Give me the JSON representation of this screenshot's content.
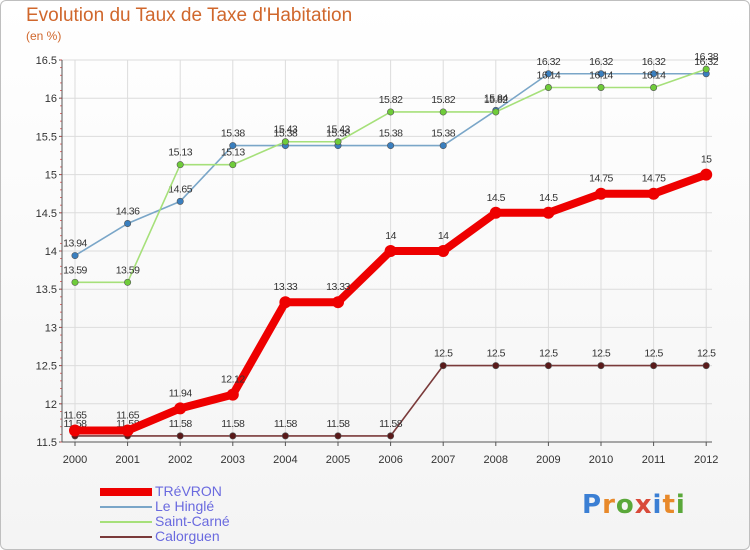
{
  "title": "Evolution du Taux de Taxe d'Habitation",
  "unit_label": "(en %)",
  "logo": {
    "text": "Proxiti",
    "colors": [
      "#3b7fd4",
      "#e8892a",
      "#5aa83a",
      "#d94a3a",
      "#3b7fd4",
      "#e8892a",
      "#5aa83a"
    ]
  },
  "chart_data": {
    "type": "line",
    "title": "Evolution du Taux de Taxe d'Habitation",
    "ylabel": "(en %)",
    "xlabel": "",
    "ylim": [
      11.5,
      16.5
    ],
    "yticks": [
      11.5,
      12,
      12.5,
      13,
      13.5,
      14,
      14.5,
      15,
      15.5,
      16,
      16.5
    ],
    "ytick_labels": [
      "11.5",
      "12",
      "12.5",
      "13",
      "13.5",
      "14",
      "14.5",
      "15",
      "15.5",
      "16",
      "16.5"
    ],
    "categories": [
      "2000",
      "2001",
      "2002",
      "2003",
      "2004",
      "2005",
      "2006",
      "2007",
      "2008",
      "2009",
      "2010",
      "2011",
      "2012"
    ],
    "grid": true,
    "legend_position": "bottom-left",
    "series": [
      {
        "name": "Le Hinglé",
        "color": "#7aa6c8",
        "marker": "#3a7fbf",
        "values": [
          13.94,
          14.36,
          14.65,
          15.38,
          15.38,
          15.38,
          15.38,
          15.38,
          15.84,
          16.32,
          16.32,
          16.32,
          16.32
        ],
        "labels": [
          "13.94",
          "14.36",
          "14.65",
          "15.38",
          "15.38",
          "15.38",
          "15.38",
          "15.38",
          "15.84",
          "16.32",
          "16.32",
          "16.32",
          "16.32"
        ]
      },
      {
        "name": "Saint-Carné",
        "color": "#a6e07a",
        "marker": "#6fcc3a",
        "values": [
          13.59,
          13.59,
          15.13,
          15.13,
          15.43,
          15.43,
          15.82,
          15.82,
          15.82,
          16.14,
          16.14,
          16.14,
          16.38
        ],
        "labels": [
          "13.59",
          "13.59",
          "15.13",
          "15.13",
          "15.43",
          "15.43",
          "15.82",
          "15.82",
          "15.82",
          "16.14",
          "16.14",
          "16.14",
          "16.38"
        ]
      },
      {
        "name": "Calorguen",
        "color": "#7a3a3a",
        "marker": "#5a1a1a",
        "values": [
          11.58,
          11.58,
          11.58,
          11.58,
          11.58,
          11.58,
          11.58,
          12.5,
          12.5,
          12.5,
          12.5,
          12.5,
          12.5
        ],
        "labels": [
          "11.58",
          "11.58",
          "11.58",
          "11.58",
          "11.58",
          "11.58",
          "11.58",
          "12.5",
          "12.5",
          "12.5",
          "12.5",
          "12.5",
          "12.5"
        ]
      },
      {
        "name": "TRéVRON",
        "color": "#ee0000",
        "marker": "#ee0000",
        "values": [
          11.65,
          11.65,
          11.94,
          12.12,
          13.33,
          13.33,
          14,
          14,
          14.5,
          14.5,
          14.75,
          14.75,
          15
        ],
        "labels": [
          "11.65",
          "11.65",
          "11.94",
          "12.12",
          "13.33",
          "13.33",
          "14",
          "14",
          "14.5",
          "14.5",
          "14.75",
          "14.75",
          "15"
        ]
      }
    ]
  },
  "legend": [
    {
      "name": "TRéVRON",
      "color": "#ee0000"
    },
    {
      "name": "Le Hinglé",
      "color": "#7aa6c8"
    },
    {
      "name": "Saint-Carné",
      "color": "#a6e07a"
    },
    {
      "name": "Calorguen",
      "color": "#7a3a3a"
    }
  ]
}
